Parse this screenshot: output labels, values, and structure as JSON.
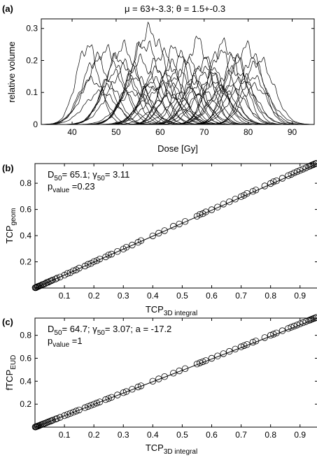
{
  "chart_data": [
    {
      "panel_label": "(a)",
      "type": "line",
      "title": "μ = 63+-3.3; θ = 1.5+-0.3",
      "xlabel": "Dose [Gy]",
      "ylabel": "relative volume",
      "xlim": [
        33,
        95
      ],
      "ylim": [
        0,
        0.33
      ],
      "xticks": [
        "40",
        "50",
        "60",
        "70",
        "80",
        "90"
      ],
      "yticks": [
        "0",
        "0.1",
        "0.2",
        "0.3"
      ],
      "series_count": 50,
      "peaks": [
        {
          "center": 43.5,
          "height": 0.245
        },
        {
          "center": 44.5,
          "height": 0.14
        },
        {
          "center": 45.5,
          "height": 0.2
        },
        {
          "center": 46.5,
          "height": 0.1
        },
        {
          "center": 47.5,
          "height": 0.23
        },
        {
          "center": 48.5,
          "height": 0.12
        },
        {
          "center": 49.5,
          "height": 0.16
        },
        {
          "center": 50.5,
          "height": 0.21
        },
        {
          "center": 51.5,
          "height": 0.24
        },
        {
          "center": 52.5,
          "height": 0.18
        },
        {
          "center": 53.5,
          "height": 0.13
        },
        {
          "center": 54.5,
          "height": 0.15
        },
        {
          "center": 55.5,
          "height": 0.2
        },
        {
          "center": 56.5,
          "height": 0.25
        },
        {
          "center": 57.5,
          "height": 0.29
        },
        {
          "center": 58,
          "height": 0.12
        },
        {
          "center": 58.5,
          "height": 0.14
        },
        {
          "center": 59.5,
          "height": 0.17
        },
        {
          "center": 60.5,
          "height": 0.22
        },
        {
          "center": 61.5,
          "height": 0.13
        },
        {
          "center": 62.5,
          "height": 0.19
        },
        {
          "center": 63.5,
          "height": 0.24
        },
        {
          "center": 64.5,
          "height": 0.16
        },
        {
          "center": 65.5,
          "height": 0.21
        },
        {
          "center": 66.5,
          "height": 0.11
        },
        {
          "center": 67.5,
          "height": 0.14
        },
        {
          "center": 68.5,
          "height": 0.26
        },
        {
          "center": 69.5,
          "height": 0.18
        },
        {
          "center": 70.5,
          "height": 0.2
        },
        {
          "center": 71.5,
          "height": 0.13
        },
        {
          "center": 72.5,
          "height": 0.15
        },
        {
          "center": 73.5,
          "height": 0.23
        },
        {
          "center": 74.5,
          "height": 0.25
        },
        {
          "center": 75.5,
          "height": 0.12
        },
        {
          "center": 76.5,
          "height": 0.17
        },
        {
          "center": 77,
          "height": 0.22
        },
        {
          "center": 77.5,
          "height": 0.19
        },
        {
          "center": 78.5,
          "height": 0.14
        },
        {
          "center": 79.5,
          "height": 0.24
        },
        {
          "center": 80.5,
          "height": 0.15
        },
        {
          "center": 81,
          "height": 0.21
        },
        {
          "center": 81.5,
          "height": 0.12
        },
        {
          "center": 82.5,
          "height": 0.2
        },
        {
          "center": 54,
          "height": 0.1
        },
        {
          "center": 60,
          "height": 0.12
        },
        {
          "center": 66,
          "height": 0.19
        },
        {
          "center": 70,
          "height": 0.1
        },
        {
          "center": 74,
          "height": 0.11
        },
        {
          "center": 62,
          "height": 0.09
        },
        {
          "center": 71,
          "height": 0.16
        }
      ]
    },
    {
      "panel_label": "(b)",
      "type": "scatter",
      "xlabel_main": "TCP",
      "xlabel_sub": "3D integral",
      "ylabel_main": "TCP",
      "ylabel_sub": "geom",
      "annotation": {
        "line1": [
          {
            "t": "D"
          },
          {
            "t": "50",
            "sub": true
          },
          {
            "t": "= 65.1; "
          },
          {
            "t": "γ"
          },
          {
            "t": "50",
            "sub": true
          },
          {
            "t": "= 3.11"
          }
        ],
        "line2": [
          {
            "t": "p"
          },
          {
            "t": "value",
            "sub": true
          },
          {
            "t": " =0.23"
          }
        ]
      },
      "xlim": [
        0,
        0.96
      ],
      "ylim": [
        0,
        0.95
      ],
      "xticks": [
        "0.1",
        "0.2",
        "0.3",
        "0.4",
        "0.5",
        "0.6",
        "0.7",
        "0.8",
        "0.9"
      ],
      "yticks": [
        "0.2",
        "0.4",
        "0.6",
        "0.8"
      ],
      "fit_line": [
        [
          0,
          0
        ],
        [
          0.96,
          0.95
        ]
      ],
      "x": [
        0.001,
        0.003,
        0.005,
        0.008,
        0.01,
        0.013,
        0.016,
        0.02,
        0.025,
        0.03,
        0.035,
        0.04,
        0.045,
        0.05,
        0.055,
        0.06,
        0.07,
        0.075,
        0.085,
        0.1,
        0.11,
        0.12,
        0.13,
        0.14,
        0.15,
        0.17,
        0.18,
        0.19,
        0.2,
        0.21,
        0.22,
        0.24,
        0.25,
        0.26,
        0.28,
        0.3,
        0.31,
        0.33,
        0.35,
        0.36,
        0.4,
        0.42,
        0.44,
        0.47,
        0.49,
        0.51,
        0.55,
        0.56,
        0.57,
        0.58,
        0.6,
        0.62,
        0.64,
        0.66,
        0.68,
        0.7,
        0.71,
        0.72,
        0.74,
        0.75,
        0.78,
        0.8,
        0.81,
        0.82,
        0.84,
        0.86,
        0.87,
        0.88,
        0.89,
        0.9,
        0.91,
        0.92,
        0.93,
        0.935,
        0.94,
        0.945,
        0.95,
        0.955
      ],
      "y": [
        0.002,
        0.003,
        0.006,
        0.009,
        0.012,
        0.014,
        0.017,
        0.02,
        0.026,
        0.03,
        0.034,
        0.042,
        0.044,
        0.051,
        0.055,
        0.062,
        0.069,
        0.076,
        0.084,
        0.098,
        0.111,
        0.118,
        0.132,
        0.139,
        0.152,
        0.168,
        0.181,
        0.188,
        0.202,
        0.209,
        0.222,
        0.238,
        0.252,
        0.259,
        0.279,
        0.298,
        0.311,
        0.328,
        0.349,
        0.362,
        0.398,
        0.419,
        0.438,
        0.472,
        0.489,
        0.508,
        0.548,
        0.562,
        0.568,
        0.581,
        0.598,
        0.618,
        0.641,
        0.658,
        0.679,
        0.698,
        0.708,
        0.722,
        0.738,
        0.748,
        0.779,
        0.798,
        0.812,
        0.818,
        0.838,
        0.858,
        0.868,
        0.879,
        0.888,
        0.898,
        0.908,
        0.918,
        0.928,
        0.933,
        0.938,
        0.942,
        0.948,
        0.952
      ]
    },
    {
      "panel_label": "(c)",
      "type": "scatter",
      "xlabel_main": "TCP",
      "xlabel_sub": "3D integral",
      "ylabel_main": "fTCP",
      "ylabel_sub": "EUD",
      "annotation": {
        "line1": [
          {
            "t": "D"
          },
          {
            "t": "50",
            "sub": true
          },
          {
            "t": "= 64.7; "
          },
          {
            "t": "γ"
          },
          {
            "t": "50",
            "sub": true
          },
          {
            "t": "= 3.07; a = -17.2"
          }
        ],
        "line2": [
          {
            "t": "p"
          },
          {
            "t": "value",
            "sub": true
          },
          {
            "t": " =1"
          }
        ]
      },
      "xlim": [
        0,
        0.96
      ],
      "ylim": [
        0,
        0.95
      ],
      "xticks": [
        "0.1",
        "0.2",
        "0.3",
        "0.4",
        "0.5",
        "0.6",
        "0.7",
        "0.8",
        "0.9"
      ],
      "yticks": [
        "0.2",
        "0.4",
        "0.6",
        "0.8"
      ],
      "fit_line": [
        [
          0,
          0
        ],
        [
          0.96,
          0.95
        ]
      ],
      "x": [
        0.001,
        0.003,
        0.005,
        0.008,
        0.01,
        0.013,
        0.016,
        0.02,
        0.025,
        0.03,
        0.035,
        0.04,
        0.045,
        0.05,
        0.055,
        0.06,
        0.07,
        0.075,
        0.085,
        0.1,
        0.11,
        0.12,
        0.13,
        0.14,
        0.15,
        0.17,
        0.18,
        0.19,
        0.2,
        0.21,
        0.22,
        0.24,
        0.25,
        0.26,
        0.28,
        0.3,
        0.31,
        0.33,
        0.35,
        0.36,
        0.4,
        0.42,
        0.44,
        0.47,
        0.49,
        0.51,
        0.55,
        0.56,
        0.57,
        0.58,
        0.6,
        0.62,
        0.64,
        0.66,
        0.68,
        0.7,
        0.71,
        0.72,
        0.74,
        0.75,
        0.78,
        0.8,
        0.81,
        0.82,
        0.84,
        0.86,
        0.87,
        0.88,
        0.89,
        0.9,
        0.91,
        0.92,
        0.93,
        0.935,
        0.94,
        0.945,
        0.95,
        0.955
      ],
      "y": [
        0.001,
        0.003,
        0.005,
        0.008,
        0.01,
        0.013,
        0.016,
        0.02,
        0.025,
        0.03,
        0.035,
        0.04,
        0.045,
        0.05,
        0.055,
        0.06,
        0.07,
        0.075,
        0.085,
        0.1,
        0.11,
        0.12,
        0.13,
        0.14,
        0.15,
        0.17,
        0.18,
        0.19,
        0.2,
        0.21,
        0.22,
        0.24,
        0.25,
        0.26,
        0.28,
        0.3,
        0.31,
        0.33,
        0.35,
        0.36,
        0.4,
        0.42,
        0.44,
        0.47,
        0.49,
        0.51,
        0.55,
        0.56,
        0.57,
        0.58,
        0.6,
        0.62,
        0.64,
        0.66,
        0.68,
        0.7,
        0.71,
        0.72,
        0.74,
        0.75,
        0.78,
        0.8,
        0.81,
        0.82,
        0.84,
        0.86,
        0.87,
        0.88,
        0.89,
        0.9,
        0.91,
        0.92,
        0.93,
        0.935,
        0.94,
        0.945,
        0.95,
        0.955
      ]
    }
  ]
}
